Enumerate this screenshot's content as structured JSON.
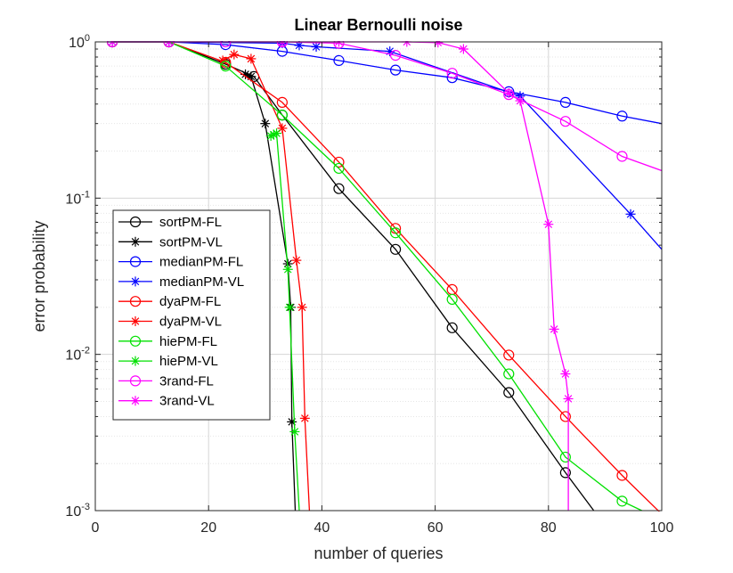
{
  "chart_data": {
    "type": "line",
    "title": "Linear Bernoulli noise",
    "xlabel": "number of queries",
    "ylabel": "error probability",
    "xlim": [
      0,
      100
    ],
    "ylim": [
      0.001,
      1
    ],
    "yscale": "log",
    "grid": true,
    "legend_position": "left-middle",
    "x_ticks": [
      {
        "value": 0,
        "label": "0"
      },
      {
        "value": 20,
        "label": "20"
      },
      {
        "value": 40,
        "label": "40"
      },
      {
        "value": 60,
        "label": "60"
      },
      {
        "value": 80,
        "label": "80"
      },
      {
        "value": 100,
        "label": "100"
      }
    ],
    "y_ticks": [
      {
        "value": 1,
        "base": "10",
        "exp": "0"
      },
      {
        "value": 0.1,
        "base": "10",
        "exp": "-1"
      },
      {
        "value": 0.01,
        "base": "10",
        "exp": "-2"
      },
      {
        "value": 0.001,
        "base": "10",
        "exp": "-3"
      }
    ],
    "series": [
      {
        "name": "sortPM-FL",
        "color": "#000000",
        "marker": "circle",
        "x": [
          3,
          13,
          23,
          28,
          33,
          43,
          53,
          63,
          73,
          83,
          88
        ],
        "y": [
          1,
          1,
          0.72,
          0.6,
          0.34,
          0.115,
          0.047,
          0.0148,
          0.0057,
          0.00175,
          0.001
        ]
      },
      {
        "name": "sortPM-VL",
        "color": "#000000",
        "marker": "star",
        "x": [
          26.5,
          27.5,
          30,
          34,
          34.5,
          34.7,
          35.3
        ],
        "y": [
          0.62,
          0.6,
          0.3,
          0.038,
          0.02,
          0.0037,
          0.001
        ]
      },
      {
        "name": "medianPM-FL",
        "color": "#0000ff",
        "marker": "circle",
        "x": [
          3,
          13,
          23,
          33,
          43,
          53,
          63,
          73,
          83,
          93,
          100
        ],
        "y": [
          1,
          1,
          0.96,
          0.87,
          0.76,
          0.66,
          0.59,
          0.48,
          0.41,
          0.335,
          0.3
        ]
      },
      {
        "name": "medianPM-VL",
        "color": "#0000ff",
        "marker": "star",
        "x": [
          3,
          13,
          33,
          36,
          39,
          52,
          75,
          94.5,
          100
        ],
        "y": [
          1,
          1,
          0.98,
          0.95,
          0.93,
          0.87,
          0.45,
          0.079,
          0.047
        ]
      },
      {
        "name": "dyaPM-FL",
        "color": "#ff0000",
        "marker": "circle",
        "x": [
          3,
          13,
          23,
          33,
          43,
          53,
          63,
          73,
          83,
          93,
          100
        ],
        "y": [
          1,
          1,
          0.74,
          0.41,
          0.17,
          0.064,
          0.026,
          0.0099,
          0.004,
          0.00168,
          0.00095
        ]
      },
      {
        "name": "dyaPM-VL",
        "color": "#ff0000",
        "marker": "star",
        "x": [
          22.5,
          24.5,
          27.5,
          33,
          35.5,
          36.5,
          37,
          37.8
        ],
        "y": [
          0.76,
          0.83,
          0.78,
          0.28,
          0.04,
          0.02,
          0.0039,
          0.001
        ]
      },
      {
        "name": "hiePM-FL",
        "color": "#00e000",
        "marker": "circle",
        "x": [
          3,
          13,
          23,
          33,
          43,
          53,
          63,
          73,
          83,
          93,
          96.5
        ],
        "y": [
          1,
          1,
          0.7,
          0.34,
          0.155,
          0.06,
          0.0225,
          0.0075,
          0.0022,
          0.00115,
          0.001
        ]
      },
      {
        "name": "hiePM-VL",
        "color": "#00e000",
        "marker": "star",
        "x": [
          31,
          31.5,
          32,
          34,
          34.3,
          35.2,
          36
        ],
        "y": [
          0.25,
          0.255,
          0.26,
          0.035,
          0.02,
          0.0032,
          0.001
        ]
      },
      {
        "name": "3rand-FL",
        "color": "#ff00ff",
        "marker": "circle",
        "x": [
          3,
          13,
          23,
          33,
          43,
          53,
          63,
          73,
          83,
          93,
          100
        ],
        "y": [
          1,
          1,
          1,
          1,
          0.98,
          0.82,
          0.63,
          0.46,
          0.31,
          0.185,
          0.15
        ]
      },
      {
        "name": "3rand-VL",
        "color": "#ff00ff",
        "marker": "star",
        "x": [
          3,
          13,
          33,
          43,
          55,
          60.5,
          65,
          73,
          75,
          80,
          81,
          83,
          83.5,
          83.5
        ],
        "y": [
          1,
          1,
          1,
          1,
          1,
          0.99,
          0.9,
          0.47,
          0.42,
          0.068,
          0.0145,
          0.0075,
          0.0052,
          0.001
        ]
      }
    ]
  }
}
